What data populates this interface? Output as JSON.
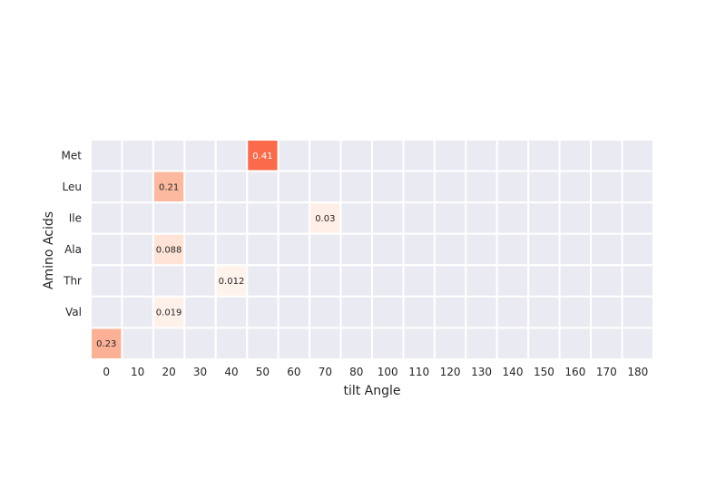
{
  "chart_data": {
    "type": "heatmap",
    "title": "",
    "xlabel": "tilt Angle",
    "ylabel": "Amino Acids",
    "x": [
      "0",
      "10",
      "20",
      "30",
      "40",
      "50",
      "60",
      "70",
      "80",
      "100",
      "110",
      "120",
      "130",
      "140",
      "150",
      "160",
      "170",
      "180"
    ],
    "y": [
      "Met",
      "Leu",
      "Ile",
      "Ala",
      "Thr",
      "Val",
      ""
    ],
    "cells": [
      {
        "x": "50",
        "y": "Met",
        "value": 0.41,
        "label": "0.41"
      },
      {
        "x": "20",
        "y": "Leu",
        "value": 0.21,
        "label": "0.21"
      },
      {
        "x": "70",
        "y": "Ile",
        "value": 0.03,
        "label": "0.03"
      },
      {
        "x": "20",
        "y": "Ala",
        "value": 0.088,
        "label": "0.088"
      },
      {
        "x": "40",
        "y": "Thr",
        "value": 0.012,
        "label": "0.012"
      },
      {
        "x": "20",
        "y": "Val",
        "value": 0.019,
        "label": "0.019"
      },
      {
        "x": "0",
        "y": "",
        "value": 0.23,
        "label": "0.23"
      }
    ],
    "empty_cell_color": "#eaeaf2",
    "grid_line_color": "#ffffff",
    "colormap": "Reds",
    "grid": true,
    "legend": "none"
  }
}
